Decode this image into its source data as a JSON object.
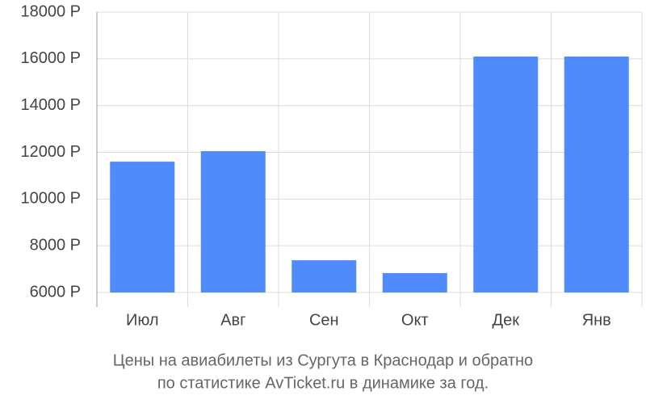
{
  "chart_data": {
    "type": "bar",
    "title": [
      "Цены на авиабилеты из Сургута в Краснодар и обратно",
      "по статистике AvTicket.ru в динамике за год."
    ],
    "categories": [
      "Июл",
      "Авг",
      "Сен",
      "Окт",
      "Дек",
      "Янв"
    ],
    "values": [
      11600,
      12050,
      7380,
      6830,
      16100,
      16100
    ],
    "color": "#4f8bfb",
    "ylim": [
      6000,
      18000
    ],
    "yticks": [
      {
        "value": 6000,
        "label": "6000 Р"
      },
      {
        "value": 8000,
        "label": "8000 Р"
      },
      {
        "value": 10000,
        "label": "10000 Р"
      },
      {
        "value": 12000,
        "label": "12000 Р"
      },
      {
        "value": 14000,
        "label": "14000 Р"
      },
      {
        "value": 16000,
        "label": "16000 Р"
      },
      {
        "value": 18000,
        "label": "18000 Р"
      }
    ],
    "grid": true
  }
}
